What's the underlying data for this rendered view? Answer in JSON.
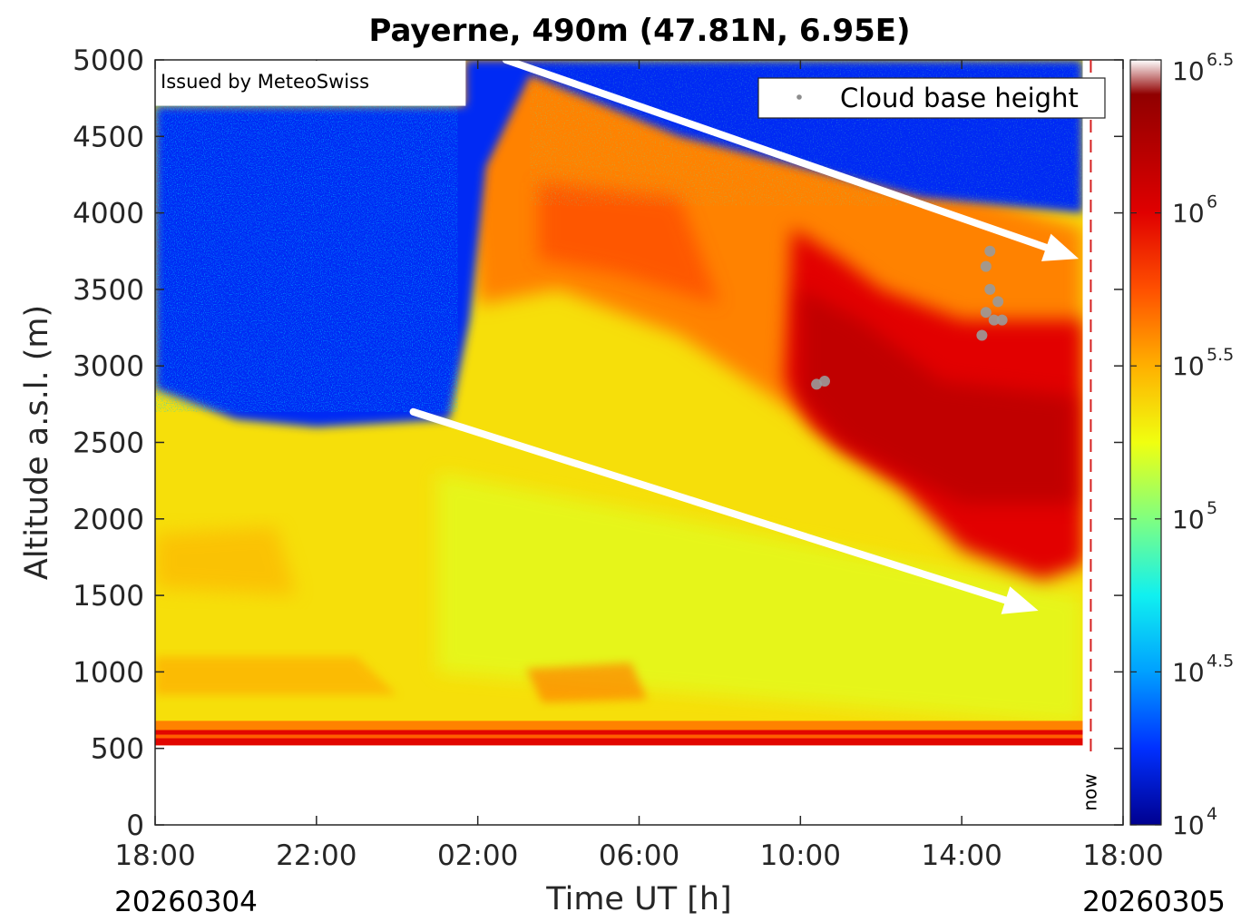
{
  "chart_data": {
    "type": "heatmap",
    "title": "Payerne, 490m (47.81N, 6.95E)",
    "xlabel": "Time UT [h]",
    "ylabel": "Altitude a.s.l. (m)",
    "x_ticks": [
      "18:00",
      "22:00",
      "02:00",
      "06:00",
      "10:00",
      "14:00",
      "18:00"
    ],
    "x_tick_hours": [
      0,
      4,
      8,
      12,
      16,
      20,
      24
    ],
    "xlim_hours": [
      0,
      24
    ],
    "y_ticks": [
      0,
      500,
      1000,
      1500,
      2000,
      2500,
      3000,
      3500,
      4000,
      4500,
      5000
    ],
    "ylim": [
      0,
      5000
    ],
    "start_date": "20260304",
    "end_date": "20260305",
    "now_label": "now",
    "now_hour": 23.2,
    "data_end_hour": 23.0,
    "annotation": "Issued by MeteoSwiss",
    "legend": {
      "label": "Cloud base height",
      "placement": "top-right"
    },
    "colorbar": {
      "scale": "log",
      "exponent_range": [
        4,
        6.5
      ],
      "ticks": [
        {
          "base": "10",
          "exp": "6.5",
          "value": 6.5
        },
        {
          "base": "10",
          "exp": "6",
          "value": 6.0
        },
        {
          "base": "10",
          "exp": "5.5",
          "value": 5.5
        },
        {
          "base": "10",
          "exp": "5",
          "value": 5.0
        },
        {
          "base": "10",
          "exp": "4.5",
          "value": 4.5
        },
        {
          "base": "10",
          "exp": "4",
          "value": 4.0
        }
      ],
      "colors": [
        "#00008f",
        "#0030ff",
        "#00a0ff",
        "#10f0f0",
        "#80ff80",
        "#f0ff10",
        "#ffb000",
        "#ff5000",
        "#e00000",
        "#900000",
        "#ffffff"
      ]
    },
    "trend_arrows": [
      {
        "from": {
          "hour": 8.7,
          "alt": 5000
        },
        "to": {
          "hour": 22.9,
          "alt": 3700
        }
      },
      {
        "from": {
          "hour": 6.4,
          "alt": 2700
        },
        "to": {
          "hour": 21.9,
          "alt": 1400
        }
      }
    ],
    "regions": [
      {
        "desc": "noise_high",
        "level": 4.25
      },
      {
        "desc": "boundary_layer",
        "level": 5.5
      },
      {
        "desc": "aerosol_upper",
        "level": 5.8
      },
      {
        "desc": "cloud_core",
        "level": 6.2
      },
      {
        "desc": "ground_band",
        "level": 6.2
      }
    ],
    "cloud_base_points": [
      {
        "hour": 20.5,
        "alt": 3200
      },
      {
        "hour": 20.6,
        "alt": 3350
      },
      {
        "hour": 20.7,
        "alt": 3500
      },
      {
        "hour": 20.8,
        "alt": 3300
      },
      {
        "hour": 20.6,
        "alt": 3650
      },
      {
        "hour": 20.9,
        "alt": 3420
      },
      {
        "hour": 20.7,
        "alt": 3750
      },
      {
        "hour": 21.0,
        "alt": 3300
      },
      {
        "hour": 16.4,
        "alt": 2880
      },
      {
        "hour": 16.6,
        "alt": 2900
      }
    ]
  }
}
